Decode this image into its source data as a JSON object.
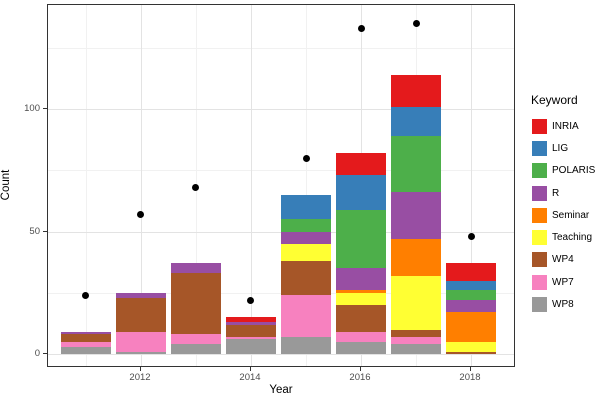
{
  "chart_data": {
    "type": "bar",
    "subtype": "stacked-bars-with-scatter-points",
    "title": "",
    "xlabel": "Year",
    "ylabel": "Count",
    "legend_title": "Keyword",
    "legend_position": "right",
    "grid": true,
    "x_ticks": [
      2012,
      2014,
      2016,
      2018
    ],
    "y_ticks": [
      0,
      50,
      100
    ],
    "y_minor_ticks": [
      25,
      75,
      125
    ],
    "ylim": [
      -7,
      143
    ],
    "categories": [
      2011,
      2012,
      2013,
      2014,
      2015,
      2016,
      2017,
      2018
    ],
    "stack_order_bottom_to_top": [
      "WP8",
      "WP7",
      "WP4",
      "Teaching",
      "Seminar",
      "R",
      "POLARIS",
      "LIG",
      "INRIA"
    ],
    "series": [
      {
        "name": "INRIA",
        "color": "#E41A1C",
        "values": [
          0,
          0,
          0,
          2,
          0,
          9,
          13,
          7
        ]
      },
      {
        "name": "LIG",
        "color": "#377EB8",
        "values": [
          0,
          0,
          0,
          0,
          10,
          14,
          12,
          4
        ]
      },
      {
        "name": "POLARIS",
        "color": "#4DAF4A",
        "values": [
          0,
          0,
          0,
          0,
          5,
          24,
          23,
          4
        ]
      },
      {
        "name": "R",
        "color": "#984EA3",
        "values": [
          1,
          2,
          4,
          1,
          5,
          9,
          19,
          5
        ]
      },
      {
        "name": "Seminar",
        "color": "#FF7F00",
        "values": [
          0,
          0,
          0,
          0,
          0,
          1,
          15,
          12
        ]
      },
      {
        "name": "Teaching",
        "color": "#FFFF33",
        "values": [
          0,
          0,
          0,
          0,
          7,
          5,
          22,
          4
        ]
      },
      {
        "name": "WP4",
        "color": "#A65628",
        "values": [
          3,
          14,
          25,
          5,
          14,
          11,
          3,
          1
        ]
      },
      {
        "name": "WP7",
        "color": "#F781BF",
        "values": [
          2,
          8,
          4,
          1,
          17,
          4,
          3,
          0
        ]
      },
      {
        "name": "WP8",
        "color": "#999999",
        "values": [
          3,
          1,
          4,
          6,
          7,
          5,
          4,
          0
        ]
      }
    ],
    "points": {
      "name": "black-dots",
      "color": "#000000",
      "values": [
        24,
        57,
        68,
        22,
        80,
        133,
        135,
        48
      ]
    },
    "bar_totals": [
      9,
      25,
      37,
      15,
      65,
      82,
      114,
      37
    ]
  },
  "style": {
    "panel_background": "#ffffff",
    "panel_border": "#333333",
    "grid_major": "#e3e3e3",
    "grid_minor": "#f1f1f1",
    "tick_label_color": "#4d4d4d"
  }
}
